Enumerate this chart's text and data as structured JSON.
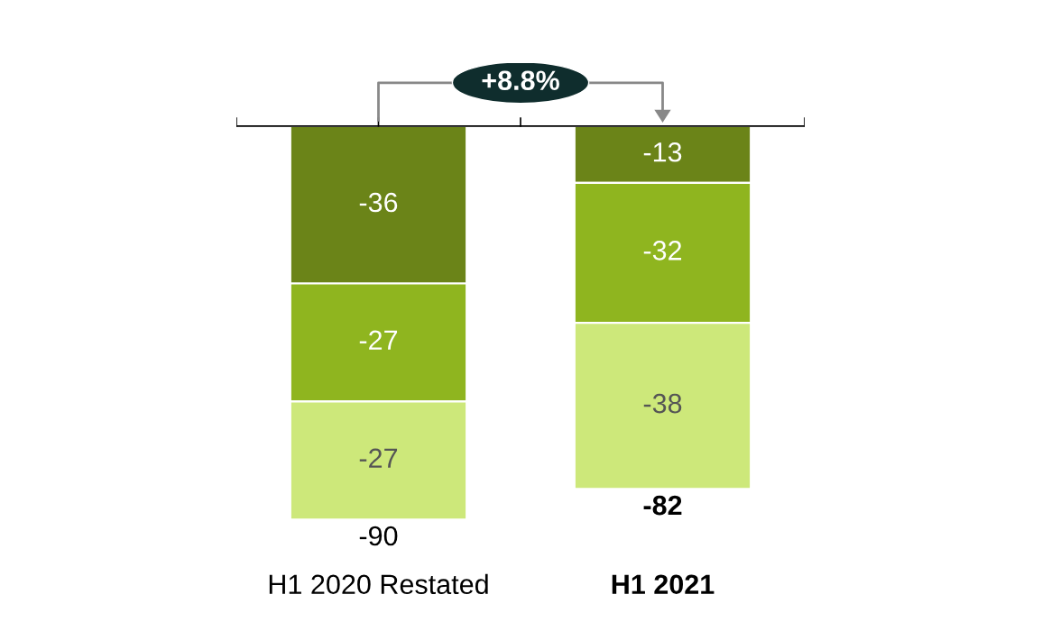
{
  "chart_data": {
    "type": "bar",
    "stacked": true,
    "categories": [
      "H1 2020 Restated",
      "H1 2021"
    ],
    "series": [
      {
        "color": "#6b8418",
        "values": [
          -36,
          -13
        ]
      },
      {
        "color": "#8fb51f",
        "values": [
          -27,
          -32
        ]
      },
      {
        "color": "#cde87a",
        "values": [
          -27,
          -38
        ]
      }
    ],
    "data_labels": true,
    "totals": [
      "-90",
      "-82"
    ],
    "annotations": [
      "+8.8%"
    ]
  }
}
